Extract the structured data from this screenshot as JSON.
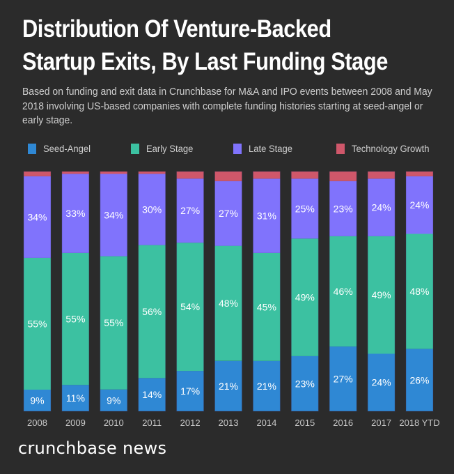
{
  "title_line1": "Distribution Of Venture-Backed",
  "title_line2": "Startup Exits, By Last Funding Stage",
  "subtitle": "Based on funding and exit data in Crunchbase for M&A and IPO events between 2008 and May 2018 involving US-based companies with complete funding histories starting at seed-angel or early stage.",
  "brand": "crunchbase news",
  "chart_data": {
    "type": "bar",
    "stacked": true,
    "normalized": true,
    "title": "Distribution Of Venture-Backed Startup Exits, By Last Funding Stage",
    "subtitle": "Based on funding and exit data in Crunchbase for M&A and IPO events between 2008 and May 2018 involving US-based companies with complete funding histories starting at seed-angel or early stage.",
    "xlabel": "",
    "ylabel": "",
    "ylim": [
      0,
      100
    ],
    "grid": false,
    "legend_position": "top",
    "categories": [
      "2008",
      "2009",
      "2010",
      "2011",
      "2012",
      "2013",
      "2014",
      "2015",
      "2016",
      "2017",
      "2018 YTD"
    ],
    "series": [
      {
        "name": "Seed-Angel",
        "color": "#2f88d4",
        "labeled": true,
        "values": [
          9,
          11,
          9,
          14,
          17,
          21,
          21,
          23,
          27,
          24,
          26
        ]
      },
      {
        "name": "Early Stage",
        "color": "#3cc1a1",
        "labeled": true,
        "values": [
          55,
          55,
          55,
          56,
          54,
          48,
          45,
          49,
          46,
          49,
          48
        ]
      },
      {
        "name": "Late Stage",
        "color": "#8073fc",
        "labeled": true,
        "values": [
          34,
          33,
          34,
          30,
          27,
          27,
          31,
          25,
          23,
          24,
          24
        ]
      },
      {
        "name": "Technology Growth",
        "color": "#cf576a",
        "labeled": false,
        "values": [
          2,
          1,
          1,
          1,
          3,
          4,
          3,
          3,
          4,
          3,
          2
        ]
      }
    ]
  }
}
